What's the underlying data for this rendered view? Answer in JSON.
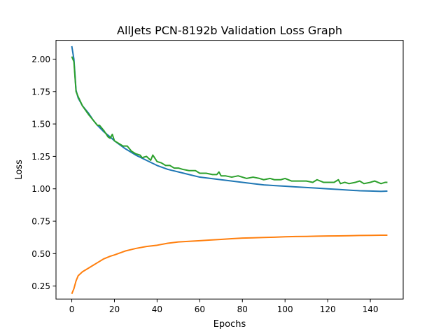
{
  "chart_data": {
    "type": "line",
    "title": "AllJets PCN-8192b Validation Loss Graph",
    "xlabel": "Epochs",
    "ylabel": "Loss",
    "xlim": [
      -7.4,
      155.4
    ],
    "ylim": [
      0.15,
      2.145
    ],
    "xticks": [
      0,
      20,
      40,
      60,
      80,
      100,
      120,
      140
    ],
    "yticks": [
      0.25,
      0.5,
      0.75,
      1.0,
      1.25,
      1.5,
      1.75,
      2.0
    ],
    "ytick_labels": [
      "0.25",
      "0.50",
      "0.75",
      "1.00",
      "1.25",
      "1.50",
      "1.75",
      "2.00"
    ],
    "grid": false,
    "legend": "none",
    "series": [
      {
        "color": "#1f77b4",
        "x": [
          0,
          1,
          2,
          3,
          5,
          8,
          10,
          12,
          15,
          18,
          20,
          25,
          30,
          35,
          40,
          45,
          50,
          55,
          60,
          65,
          70,
          75,
          80,
          85,
          90,
          95,
          100,
          105,
          110,
          115,
          120,
          125,
          130,
          135,
          140,
          145,
          148
        ],
        "y": [
          2.1,
          2.0,
          1.76,
          1.7,
          1.64,
          1.58,
          1.53,
          1.49,
          1.44,
          1.4,
          1.37,
          1.31,
          1.26,
          1.22,
          1.18,
          1.15,
          1.13,
          1.11,
          1.09,
          1.08,
          1.07,
          1.06,
          1.05,
          1.04,
          1.03,
          1.025,
          1.02,
          1.015,
          1.01,
          1.005,
          1.0,
          0.995,
          0.99,
          0.985,
          0.983,
          0.98,
          0.982
        ]
      },
      {
        "color": "#ff7f0e",
        "x": [
          0,
          1,
          2,
          3,
          5,
          8,
          10,
          12,
          15,
          18,
          20,
          25,
          30,
          35,
          40,
          45,
          50,
          55,
          60,
          65,
          70,
          75,
          80,
          85,
          90,
          95,
          100,
          105,
          110,
          115,
          120,
          125,
          130,
          135,
          140,
          145,
          148
        ],
        "y": [
          0.19,
          0.23,
          0.29,
          0.33,
          0.36,
          0.39,
          0.41,
          0.43,
          0.46,
          0.48,
          0.49,
          0.52,
          0.54,
          0.555,
          0.565,
          0.58,
          0.59,
          0.595,
          0.6,
          0.605,
          0.61,
          0.615,
          0.62,
          0.622,
          0.625,
          0.627,
          0.63,
          0.632,
          0.633,
          0.635,
          0.636,
          0.637,
          0.638,
          0.64,
          0.641,
          0.642,
          0.642
        ]
      },
      {
        "color": "#2ca02c",
        "x": [
          0,
          1,
          2,
          3,
          5,
          8,
          10,
          12,
          13,
          15,
          17,
          18,
          19,
          20,
          22,
          24,
          26,
          28,
          30,
          32,
          33,
          35,
          37,
          38,
          40,
          42,
          44,
          46,
          48,
          50,
          52,
          55,
          58,
          60,
          63,
          66,
          68,
          69,
          70,
          72,
          75,
          78,
          80,
          82,
          85,
          88,
          90,
          93,
          95,
          98,
          100,
          103,
          106,
          110,
          113,
          115,
          118,
          120,
          123,
          125,
          126,
          128,
          130,
          133,
          135,
          137,
          140,
          142,
          145,
          147,
          148
        ],
        "y": [
          2.02,
          1.98,
          1.75,
          1.71,
          1.64,
          1.57,
          1.53,
          1.49,
          1.49,
          1.45,
          1.4,
          1.39,
          1.42,
          1.37,
          1.35,
          1.33,
          1.33,
          1.29,
          1.27,
          1.26,
          1.24,
          1.25,
          1.22,
          1.26,
          1.21,
          1.2,
          1.18,
          1.18,
          1.16,
          1.16,
          1.15,
          1.14,
          1.14,
          1.12,
          1.12,
          1.11,
          1.11,
          1.13,
          1.1,
          1.1,
          1.09,
          1.1,
          1.09,
          1.08,
          1.09,
          1.08,
          1.07,
          1.08,
          1.07,
          1.07,
          1.08,
          1.06,
          1.06,
          1.06,
          1.05,
          1.07,
          1.05,
          1.05,
          1.05,
          1.07,
          1.04,
          1.05,
          1.04,
          1.05,
          1.06,
          1.04,
          1.05,
          1.06,
          1.04,
          1.05,
          1.05
        ]
      }
    ]
  }
}
